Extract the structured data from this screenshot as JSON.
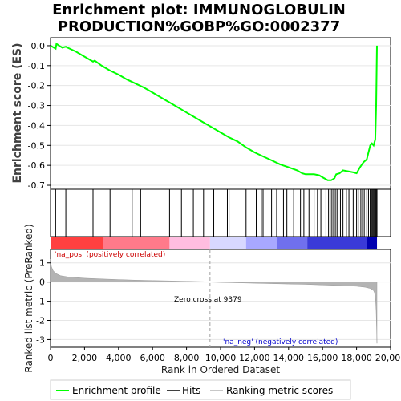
{
  "title_line1": "Enrichment plot: IMMUNOGLOBULIN",
  "title_line2": "PRODUCTION%GOBP%GO:0002377",
  "top_panel": {
    "ylabel": "Enrichment score (ES)",
    "yticks": [
      "0.0",
      "-0.1",
      "-0.2",
      "-0.3",
      "-0.4",
      "-0.5",
      "-0.6",
      "-0.7"
    ]
  },
  "bottom_panel": {
    "ylabel": "Ranked list metric (PreRanked)",
    "yticks": [
      "1",
      "0",
      "-1",
      "-2",
      "-3"
    ],
    "pos_label": "'na_pos' (positively correlated)",
    "neg_label": "'na_neg' (negatively correlated)",
    "zero_cross_label": "Zero cross at 9379"
  },
  "xlabel": "Rank in Ordered Dataset",
  "xticks": [
    "0",
    "2,000",
    "4,000",
    "6,000",
    "8,000",
    "10,000",
    "12,000",
    "14,000",
    "16,000",
    "18,000",
    "20,000"
  ],
  "legend": {
    "enrichment": "Enrichment profile",
    "hits": "Hits",
    "metric": "Ranking metric scores"
  },
  "colors": {
    "es_line": "#00ff00",
    "pos_label": "#cc0000",
    "neg_label": "#0000cc",
    "metric_fill": "#b4b4b4",
    "hits": "#000000"
  },
  "chart_data": {
    "type": "line",
    "x_range": [
      0,
      20000
    ],
    "es_ylim": [
      -0.72,
      0.04
    ],
    "metric_ylim": [
      -3.4,
      1.7
    ],
    "zero_cross": 9379,
    "total_rank": 19200,
    "es_curve": {
      "x": [
        0,
        300,
        350,
        500,
        700,
        900,
        1000,
        1500,
        2000,
        2500,
        2600,
        3000,
        3500,
        4000,
        4500,
        5000,
        5500,
        6000,
        6500,
        7000,
        7500,
        8000,
        8500,
        9000,
        9500,
        10000,
        10500,
        11000,
        11500,
        12000,
        12500,
        13000,
        13500,
        14000,
        14500,
        14800,
        15000,
        15500,
        15800,
        16000,
        16300,
        16500,
        16700,
        16800,
        17000,
        17200,
        17500,
        17800,
        18000,
        18200,
        18400,
        18600,
        18800,
        18900,
        19000,
        19100,
        19150,
        19200
      ],
      "y": [
        0.0,
        -0.015,
        0.01,
        0.0,
        -0.01,
        -0.005,
        -0.01,
        -0.03,
        -0.055,
        -0.08,
        -0.075,
        -0.1,
        -0.125,
        -0.145,
        -0.17,
        -0.19,
        -0.21,
        -0.235,
        -0.26,
        -0.285,
        -0.31,
        -0.335,
        -0.36,
        -0.385,
        -0.41,
        -0.435,
        -0.46,
        -0.48,
        -0.51,
        -0.535,
        -0.555,
        -0.575,
        -0.595,
        -0.61,
        -0.625,
        -0.64,
        -0.645,
        -0.645,
        -0.65,
        -0.66,
        -0.675,
        -0.675,
        -0.665,
        -0.645,
        -0.64,
        -0.625,
        -0.63,
        -0.635,
        -0.64,
        -0.61,
        -0.585,
        -0.57,
        -0.5,
        -0.49,
        -0.5,
        -0.47,
        -0.3,
        0.0
      ]
    },
    "hits": [
      300,
      900,
      2500,
      3500,
      4800,
      5300,
      7000,
      7700,
      8400,
      9000,
      9600,
      10400,
      10500,
      11500,
      12100,
      12400,
      12500,
      13000,
      13300,
      13700,
      13900,
      14300,
      14700,
      14900,
      15200,
      15500,
      15700,
      15900,
      16200,
      16350,
      16450,
      16550,
      16650,
      16750,
      16850,
      17050,
      17200,
      17400,
      17550,
      17800,
      18000,
      18100,
      18250,
      18350,
      18450,
      18600,
      18700,
      18800,
      18900,
      18950,
      19000,
      19050,
      19100,
      19150,
      19200
    ],
    "metric_curve": {
      "x": [
        0,
        50,
        150,
        300,
        600,
        1000,
        2000,
        3000,
        4000,
        5000,
        6000,
        7000,
        8000,
        9000,
        9379,
        10000,
        11000,
        12000,
        13000,
        14000,
        15000,
        16000,
        17000,
        18000,
        18500,
        18800,
        19000,
        19100,
        19150,
        19200
      ],
      "y": [
        1.2,
        0.8,
        0.6,
        0.45,
        0.33,
        0.27,
        0.2,
        0.16,
        0.13,
        0.1,
        0.08,
        0.06,
        0.04,
        0.02,
        0.0,
        -0.02,
        -0.04,
        -0.06,
        -0.08,
        -0.1,
        -0.12,
        -0.15,
        -0.18,
        -0.22,
        -0.27,
        -0.33,
        -0.45,
        -0.65,
        -1.5,
        -3.2
      ]
    },
    "heatmap_bands": [
      {
        "from": 0,
        "to": 3100,
        "color": "#ff4040"
      },
      {
        "from": 3100,
        "to": 7000,
        "color": "#ff7a8a"
      },
      {
        "from": 7000,
        "to": 9379,
        "color": "#ffbde0"
      },
      {
        "from": 9379,
        "to": 11500,
        "color": "#d8d8ff"
      },
      {
        "from": 11500,
        "to": 13300,
        "color": "#a8a8ff"
      },
      {
        "from": 13300,
        "to": 15100,
        "color": "#7070ee"
      },
      {
        "from": 15100,
        "to": 18600,
        "color": "#3a3ad8"
      },
      {
        "from": 18600,
        "to": 19200,
        "color": "#0000b0"
      }
    ]
  }
}
